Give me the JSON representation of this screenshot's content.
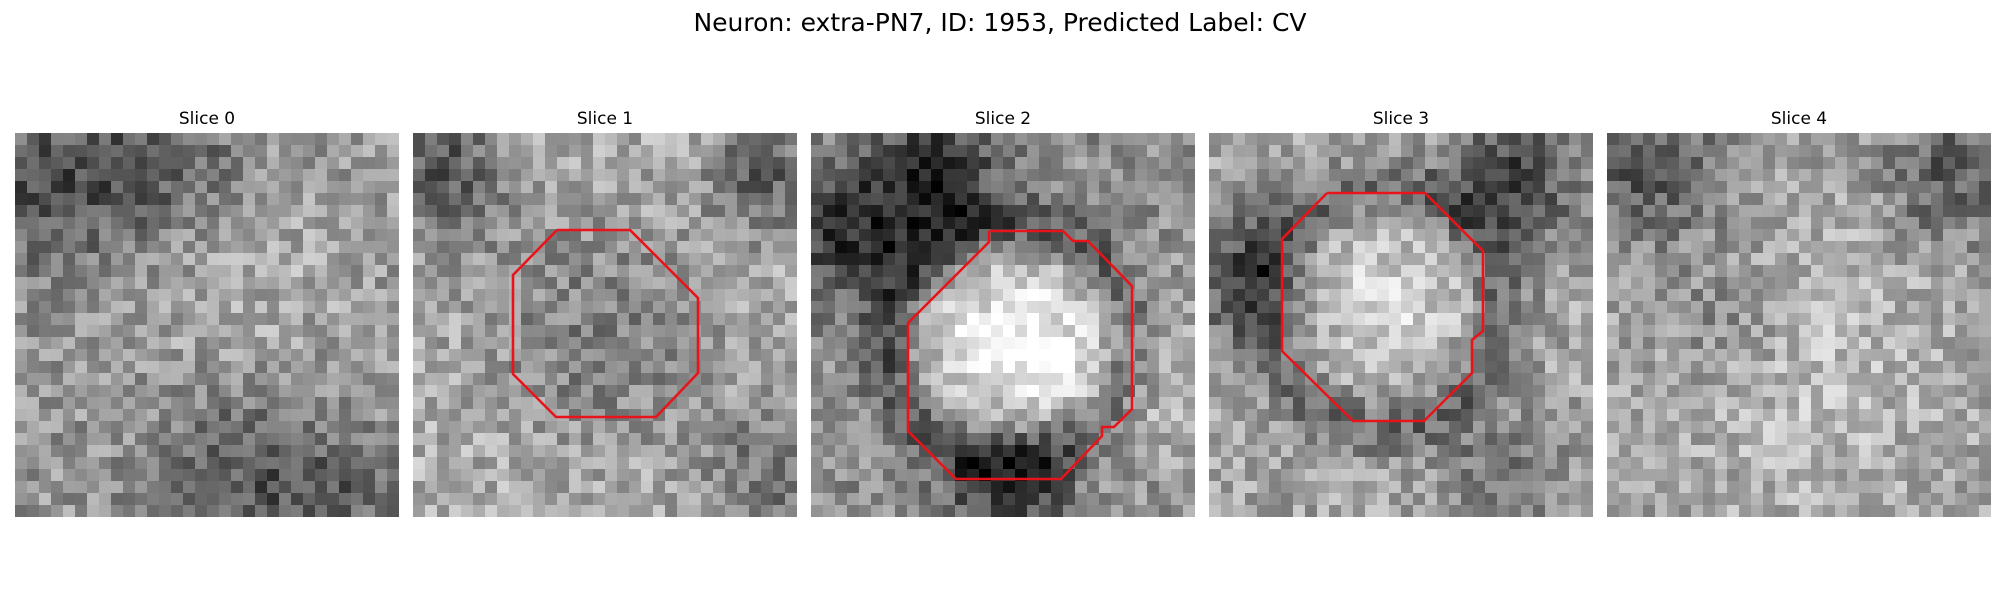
{
  "figure": {
    "title": "Neuron: extra-PN7, ID: 1953, Predicted Label: CV"
  },
  "slices": [
    {
      "title": "Slice 0",
      "has_contour": false
    },
    {
      "title": "Slice 1",
      "has_contour": true
    },
    {
      "title": "Slice 2",
      "has_contour": true
    },
    {
      "title": "Slice 3",
      "has_contour": true
    },
    {
      "title": "Slice 4",
      "has_contour": false
    }
  ],
  "colors": {
    "background": "#ffffff",
    "contour": "#e8141a",
    "text": "#000000"
  },
  "colormap": "grayscale"
}
